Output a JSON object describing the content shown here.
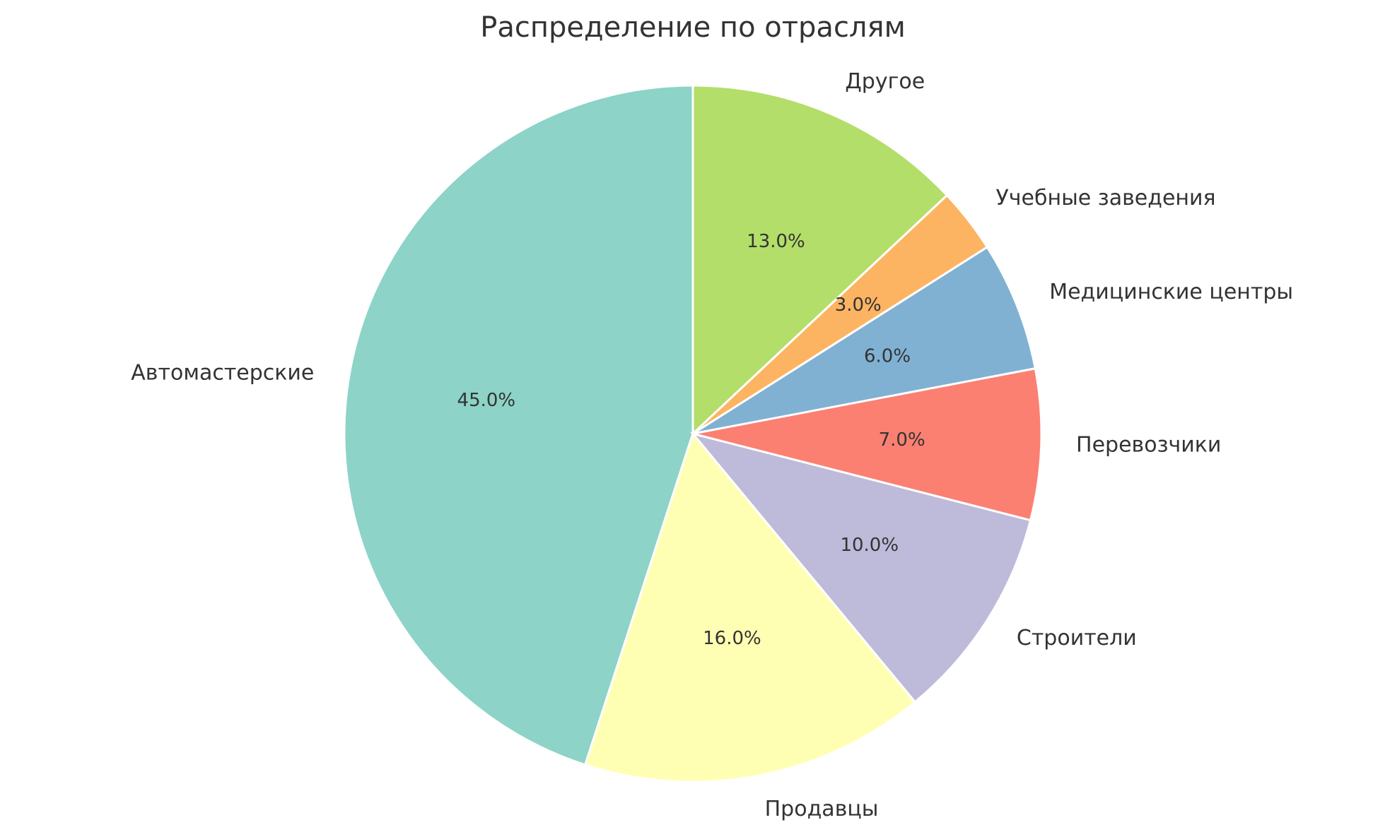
{
  "chart_data": {
    "type": "pie",
    "title": "Распределение по отраслям",
    "start_angle_deg": 90,
    "direction": "counterclockwise",
    "slices": [
      {
        "label": "Автомастерские",
        "value": 45.0,
        "pct_label": "45.0%",
        "color": "#8dd3c7"
      },
      {
        "label": "Продавцы",
        "value": 16.0,
        "pct_label": "16.0%",
        "color": "#ffffb3"
      },
      {
        "label": "Строители",
        "value": 10.0,
        "pct_label": "10.0%",
        "color": "#bebada"
      },
      {
        "label": "Перевозчики",
        "value": 7.0,
        "pct_label": "7.0%",
        "color": "#fb8072"
      },
      {
        "label": "Медицинские центры",
        "value": 6.0,
        "pct_label": "6.0%",
        "color": "#80b1d3"
      },
      {
        "label": "Учебные заведения",
        "value": 3.0,
        "pct_label": "3.0%",
        "color": "#fdb462"
      },
      {
        "label": "Другое",
        "value": 13.0,
        "pct_label": "13.0%",
        "color": "#b3de69"
      }
    ]
  }
}
